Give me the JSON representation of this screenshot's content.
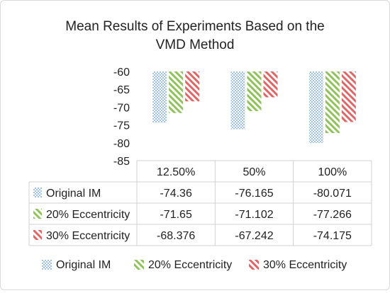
{
  "chart_data": {
    "type": "bar",
    "title": "Mean Results of Experiments Based on the VMD Method",
    "title_lines": [
      "Mean Results of Experiments Based on the",
      "VMD Method"
    ],
    "categories": [
      "12.50%",
      "50%",
      "100%"
    ],
    "series": [
      {
        "name": "Original IM",
        "values": [
          -74.36,
          -76.165,
          -80.071
        ],
        "color": "#9dc3e6",
        "pattern": "dots"
      },
      {
        "name": "20% Eccentricity",
        "values": [
          -71.65,
          -71.102,
          -77.266
        ],
        "color": "#8fc35a",
        "pattern": "diagonal"
      },
      {
        "name": "30% Eccentricity",
        "values": [
          -68.376,
          -67.242,
          -74.175
        ],
        "color": "#e06666",
        "pattern": "diagonal"
      }
    ],
    "value_labels": [
      [
        "-74.36",
        "-76.165",
        "-80.071"
      ],
      [
        "-71.65",
        "-71.102",
        "-77.266"
      ],
      [
        "-68.376",
        "-67.242",
        "-74.175"
      ]
    ],
    "ylim": [
      -85,
      -60
    ],
    "yticks": [
      -60,
      -65,
      -70,
      -75,
      -80,
      -85
    ],
    "grid": true,
    "data_table": true,
    "legend": "bottom"
  }
}
